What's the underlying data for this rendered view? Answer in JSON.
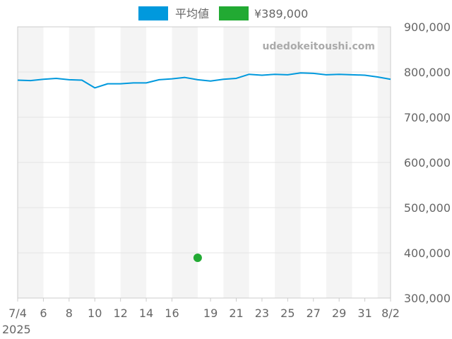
{
  "chart_data": {
    "type": "line",
    "watermark": "udedokeitoushi.com",
    "legend": [
      {
        "name": "平均値",
        "color": "#0099dd",
        "kind": "line"
      },
      {
        "name": "¥389,000",
        "color": "#22aa33",
        "kind": "point"
      }
    ],
    "x_start_label_year": "2025",
    "x_tick_labels": [
      "7/4",
      "6",
      "8",
      "10",
      "12",
      "14",
      "16",
      "19",
      "21",
      "23",
      "25",
      "27",
      "29",
      "31",
      "8/2"
    ],
    "x_tick_days": [
      0,
      2,
      4,
      6,
      8,
      10,
      12,
      15,
      17,
      19,
      21,
      23,
      25,
      27,
      29
    ],
    "x_range_days": [
      0,
      29
    ],
    "ylim": [
      300000,
      900000
    ],
    "y_ticks": [
      300000,
      400000,
      500000,
      600000,
      700000,
      800000,
      900000
    ],
    "y_tick_labels": [
      "300,000",
      "400,000",
      "500,000",
      "600,000",
      "700,000",
      "800,000",
      "900,000"
    ],
    "grid": true,
    "series": [
      {
        "name": "平均値",
        "color": "#0099dd",
        "x_days": [
          0,
          1,
          2,
          3,
          4,
          5,
          6,
          7,
          8,
          9,
          10,
          11,
          12,
          13,
          14,
          15,
          16,
          17,
          18,
          19,
          20,
          21,
          22,
          23,
          24,
          25,
          26,
          27,
          28,
          29
        ],
        "values": [
          782000,
          781000,
          784000,
          786000,
          783000,
          782000,
          765000,
          774000,
          774000,
          776000,
          776000,
          783000,
          785000,
          788000,
          783000,
          780000,
          784000,
          786000,
          795000,
          793000,
          795000,
          794000,
          798000,
          797000,
          794000,
          795000,
          794000,
          793000,
          789000,
          784000
        ]
      },
      {
        "name": "¥389,000",
        "color": "#22aa33",
        "x_days": [
          14
        ],
        "values": [
          389000
        ]
      }
    ]
  }
}
